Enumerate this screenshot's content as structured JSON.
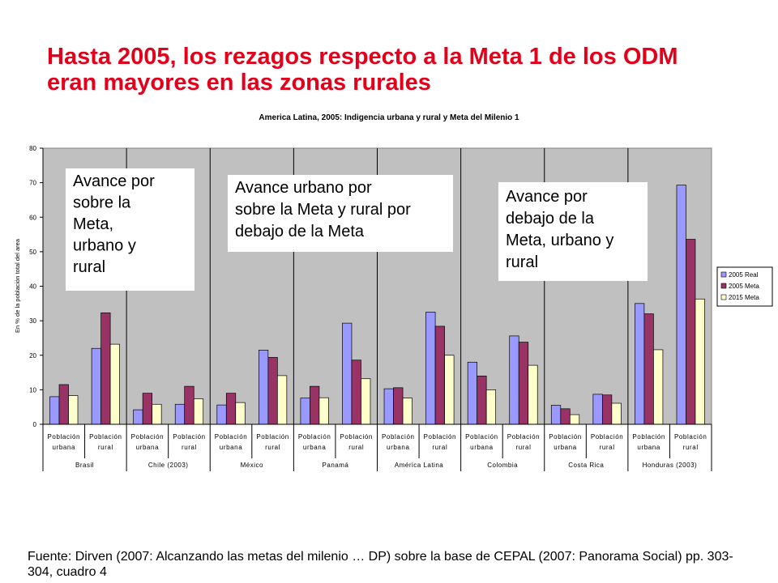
{
  "slide": {
    "title_line1": "Hasta 2005, los rezagos respecto a la Meta 1 de los ODM",
    "title_line2": "eran mayores en las zonas rurales",
    "source_line1": "Fuente: Dirven (2007: Alcanzando las metas del milenio … DP) sobre la base de CEPAL (2007: Panorama Social) pp. 303-",
    "source_line2": "304, cuadro 4"
  },
  "annotations": [
    {
      "lines": [
        "Avance por",
        "sobre la",
        "Meta,",
        "urbano y",
        "rural"
      ]
    },
    {
      "lines": [
        "Avance urbano por",
        "sobre la Meta y rural por",
        "debajo de la Meta"
      ]
    },
    {
      "lines": [
        "Avance por",
        "debajo de la",
        "Meta, urbano y",
        "rural"
      ]
    }
  ],
  "colors": {
    "title": "#e3001b",
    "plot_bg": "#c0c0c0",
    "real": "#9999ff",
    "meta2005": "#993366",
    "meta2015": "#ffffcc"
  },
  "chart_data": {
    "type": "bar",
    "title": "America Latina, 2005: Indigencia urbana y rural y Meta del Milenio 1",
    "ylabel": "En % de la población total del area",
    "ylim": [
      0,
      80
    ],
    "yticks": [
      0,
      10,
      20,
      30,
      40,
      50,
      60,
      70,
      80
    ],
    "grid": false,
    "legend_position": "right",
    "categories": [
      {
        "label": [
          "Población",
          "urbana"
        ],
        "group": "Brasil"
      },
      {
        "label": [
          "Población",
          "rural"
        ],
        "group": "Brasil"
      },
      {
        "label": [
          "Población",
          "urbana"
        ],
        "group": "Chile (2003)"
      },
      {
        "label": [
          "Población",
          "rural"
        ],
        "group": "Chile (2003)"
      },
      {
        "label": [
          "Población",
          "urbana"
        ],
        "group": "México"
      },
      {
        "label": [
          "Población",
          "rural"
        ],
        "group": "México"
      },
      {
        "label": [
          "Población",
          "urbana"
        ],
        "group": "Panamá"
      },
      {
        "label": [
          "Población",
          "rural"
        ],
        "group": "Panamá"
      },
      {
        "label": [
          "Población",
          "urbana"
        ],
        "group": "América Latina"
      },
      {
        "label": [
          "Población",
          "rural"
        ],
        "group": "América Latina"
      },
      {
        "label": [
          "Población",
          "urbana"
        ],
        "group": "Colombia"
      },
      {
        "label": [
          "Población",
          "rural"
        ],
        "group": "Colombia"
      },
      {
        "label": [
          "Población",
          "urbana"
        ],
        "group": "Costa Rica"
      },
      {
        "label": [
          "Población",
          "rural"
        ],
        "group": "Costa Rica"
      },
      {
        "label": [
          "Población",
          "urbana"
        ],
        "group": "Honduras (2003)"
      },
      {
        "label": [
          "Población",
          "rural"
        ],
        "group": "Honduras (2003)"
      }
    ],
    "groups": [
      "Brasil",
      "Chile (2003)",
      "México",
      "Panamá",
      "América Latina",
      "Colombia",
      "Costa Rica",
      "Honduras (2003)"
    ],
    "series": [
      {
        "name": "2005 Real",
        "color": "#9999ff",
        "values": [
          8,
          22,
          4.2,
          5.8,
          5.6,
          21.5,
          7.6,
          29.3,
          10.3,
          32.5,
          18,
          25.6,
          5.5,
          8.7,
          35,
          69.3
        ]
      },
      {
        "name": "2005 Meta",
        "color": "#993366",
        "values": [
          11.5,
          32.3,
          9,
          11,
          9,
          19.4,
          11,
          18.6,
          10.6,
          28.4,
          14,
          23.8,
          4.5,
          8.5,
          32,
          53.6
        ]
      },
      {
        "name": "2015 Meta",
        "color": "#ffffcc",
        "values": [
          8.3,
          23.2,
          5.8,
          7.4,
          6.3,
          14.1,
          7.7,
          13.2,
          7.6,
          20,
          10,
          17.1,
          2.8,
          6.1,
          21.6,
          36.3
        ]
      }
    ]
  }
}
